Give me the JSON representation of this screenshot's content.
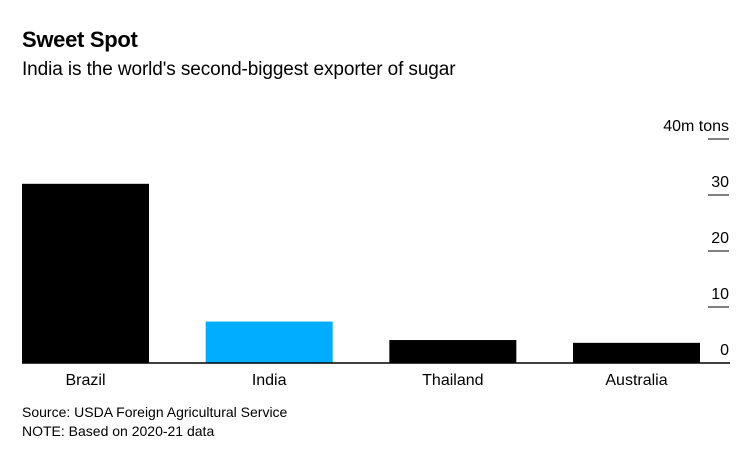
{
  "header": {
    "title": "Sweet Spot",
    "subtitle": "India is the world's second-biggest exporter of sugar"
  },
  "footer": {
    "source": "Source: USDA Foreign Agricultural Service",
    "note": "NOTE: Based on 2020-21 data"
  },
  "chart_data": {
    "type": "bar",
    "title": "Sweet Spot",
    "subtitle": "India is the world's second-biggest exporter of sugar",
    "xlabel": "",
    "ylabel": "m tons",
    "categories": [
      "Brazil",
      "India",
      "Thailand",
      "Australia"
    ],
    "values": [
      32,
      7.4,
      4.1,
      3.6
    ],
    "units": "million tons",
    "bar_colors": [
      "#000000",
      "#00adff",
      "#000000",
      "#000000"
    ],
    "highlight": "India",
    "ylim": [
      0,
      40
    ],
    "yticks": [
      0,
      10,
      20,
      30,
      40
    ],
    "ytick_labels": [
      "0",
      "10",
      "20",
      "30",
      "40m tons"
    ],
    "y_axis_side": "right",
    "grid": false,
    "legend": null
  }
}
